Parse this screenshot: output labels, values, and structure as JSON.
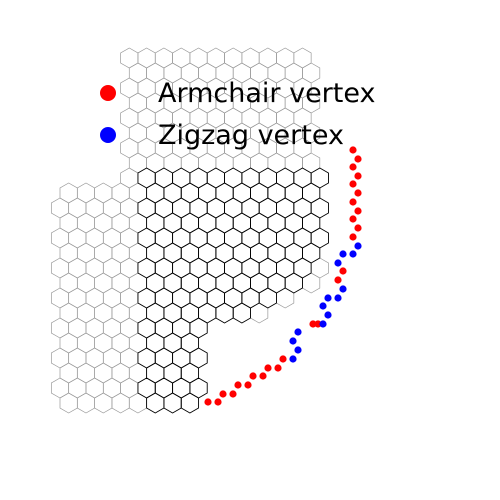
{
  "legend": {
    "entries": [
      {
        "label": "Armchair vertex",
        "color": "#ff0000",
        "marker": "circle"
      },
      {
        "label": "Zigzag vertex",
        "color": "#0000ff",
        "marker": "circle"
      }
    ]
  },
  "colors": {
    "background": "#ffffff",
    "inner_lattice_stroke": "#000000",
    "outer_lattice_stroke": "#999999",
    "armchair": "#ff0000",
    "zigzag": "#0000ff"
  }
}
